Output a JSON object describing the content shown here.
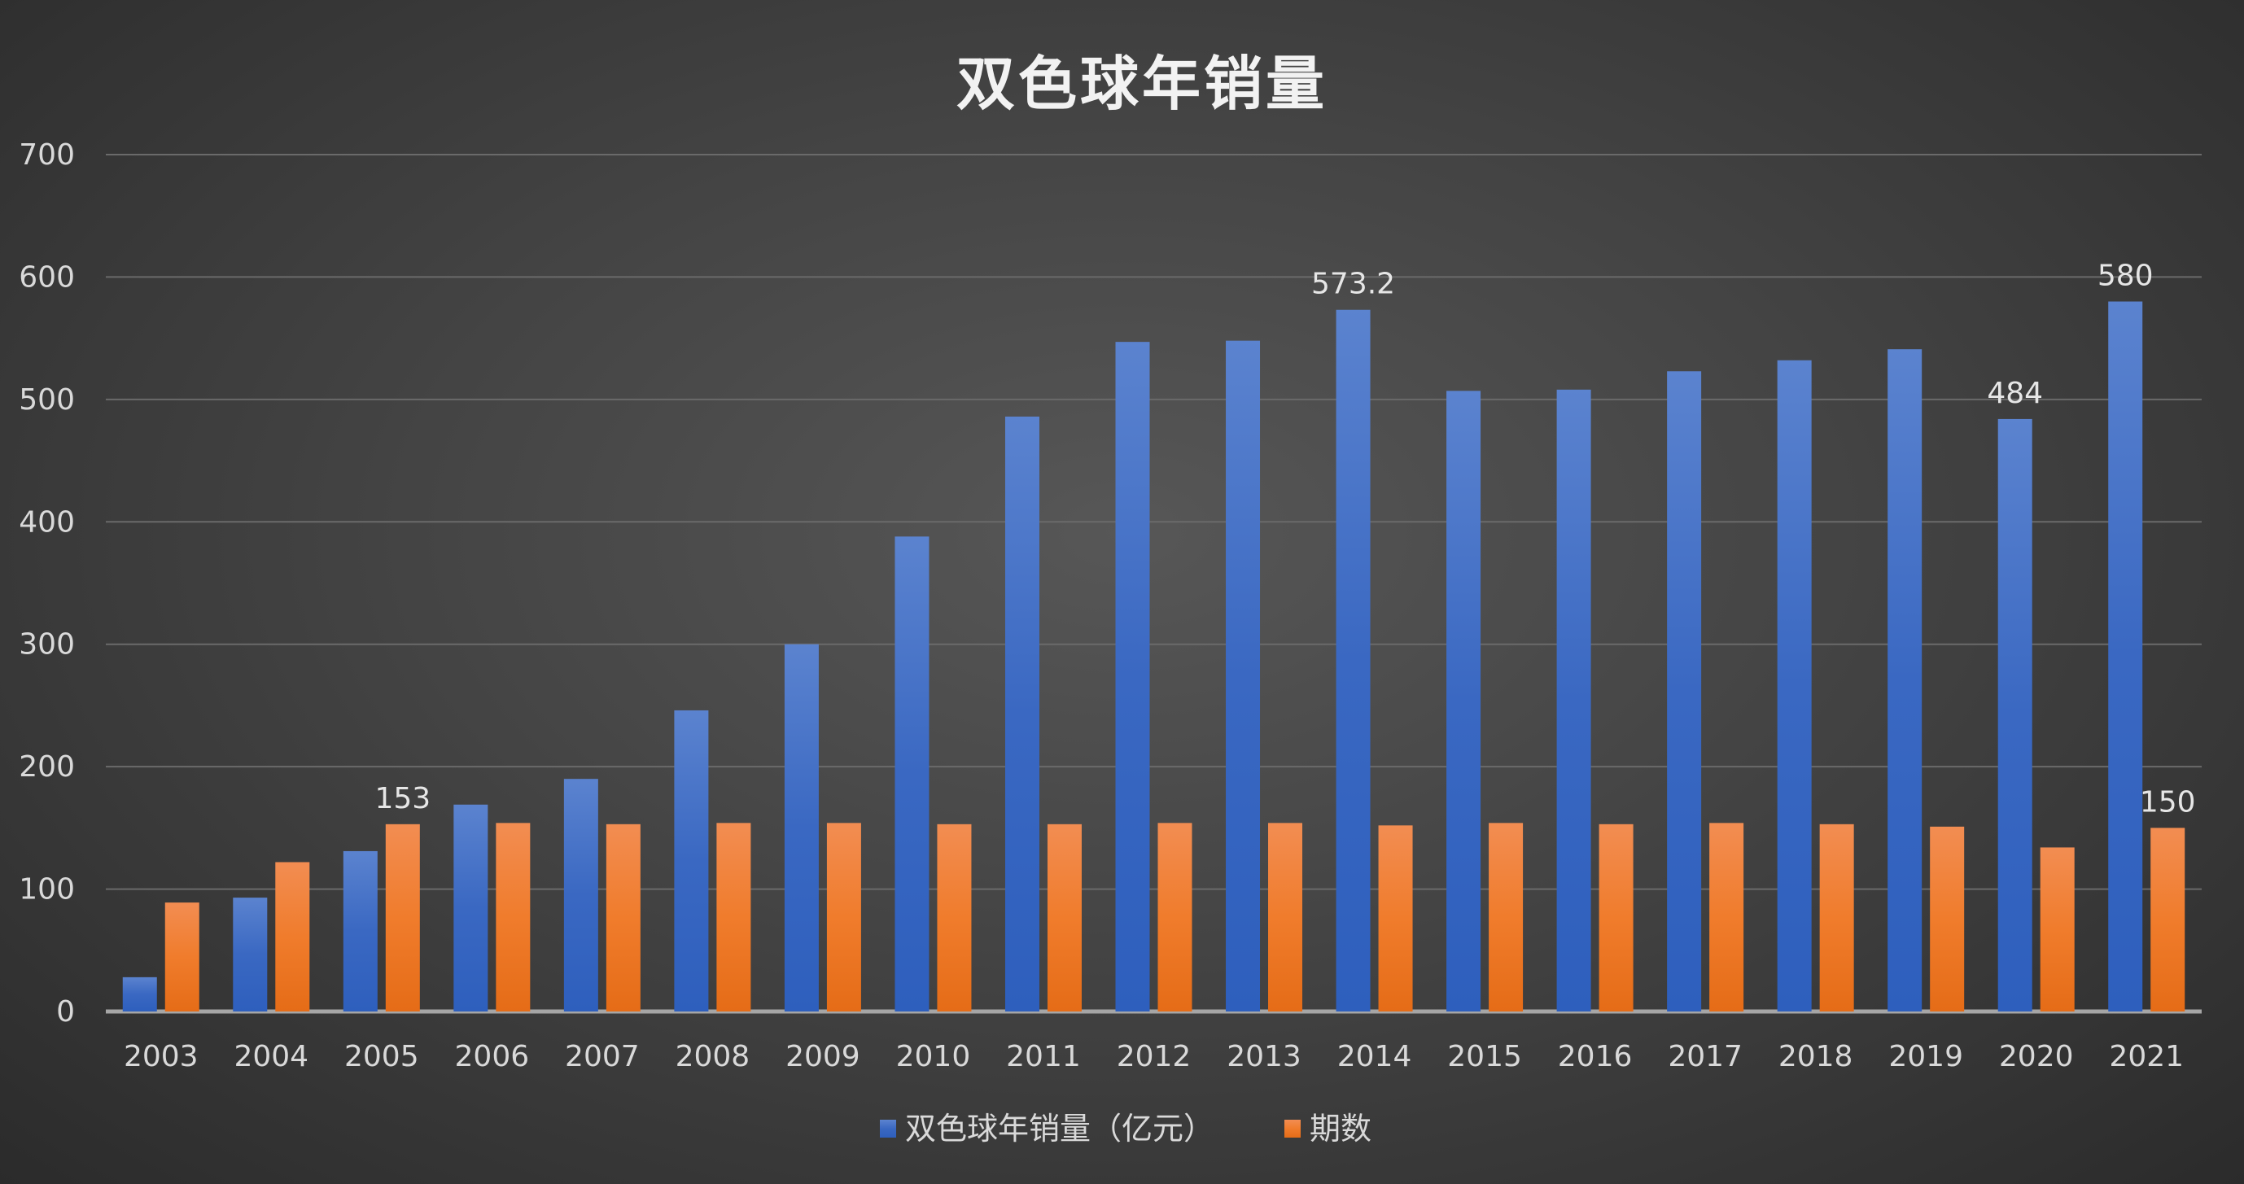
{
  "chart_data": {
    "type": "bar",
    "title": "双色球年销量",
    "xlabel": "",
    "ylabel": "",
    "ylim": [
      0,
      700
    ],
    "yticks": [
      "0",
      "100",
      "200",
      "300",
      "400",
      "500",
      "600",
      "700"
    ],
    "grid": true,
    "legend_position": "bottom",
    "categories": [
      "2003",
      "2004",
      "2005",
      "2006",
      "2007",
      "2008",
      "2009",
      "2010",
      "2011",
      "2012",
      "2013",
      "2014",
      "2015",
      "2016",
      "2017",
      "2018",
      "2019",
      "2020",
      "2021"
    ],
    "series": [
      {
        "name": "双色球年销量（亿元）",
        "color": "#4472c4",
        "values": [
          28,
          93,
          131,
          169,
          190,
          246,
          300,
          388,
          486,
          547,
          548,
          573.2,
          507,
          508,
          523,
          532,
          541,
          484,
          580
        ],
        "data_labels": {
          "2014": "573.2",
          "2020": "484",
          "2021": "580"
        }
      },
      {
        "name": "期数",
        "color": "#ed7d31",
        "values": [
          89,
          122,
          153,
          154,
          153,
          154,
          154,
          153,
          153,
          154,
          154,
          152,
          154,
          153,
          154,
          153,
          151,
          134,
          150
        ],
        "data_labels": {
          "2005": "153",
          "2021": "150"
        }
      }
    ]
  }
}
